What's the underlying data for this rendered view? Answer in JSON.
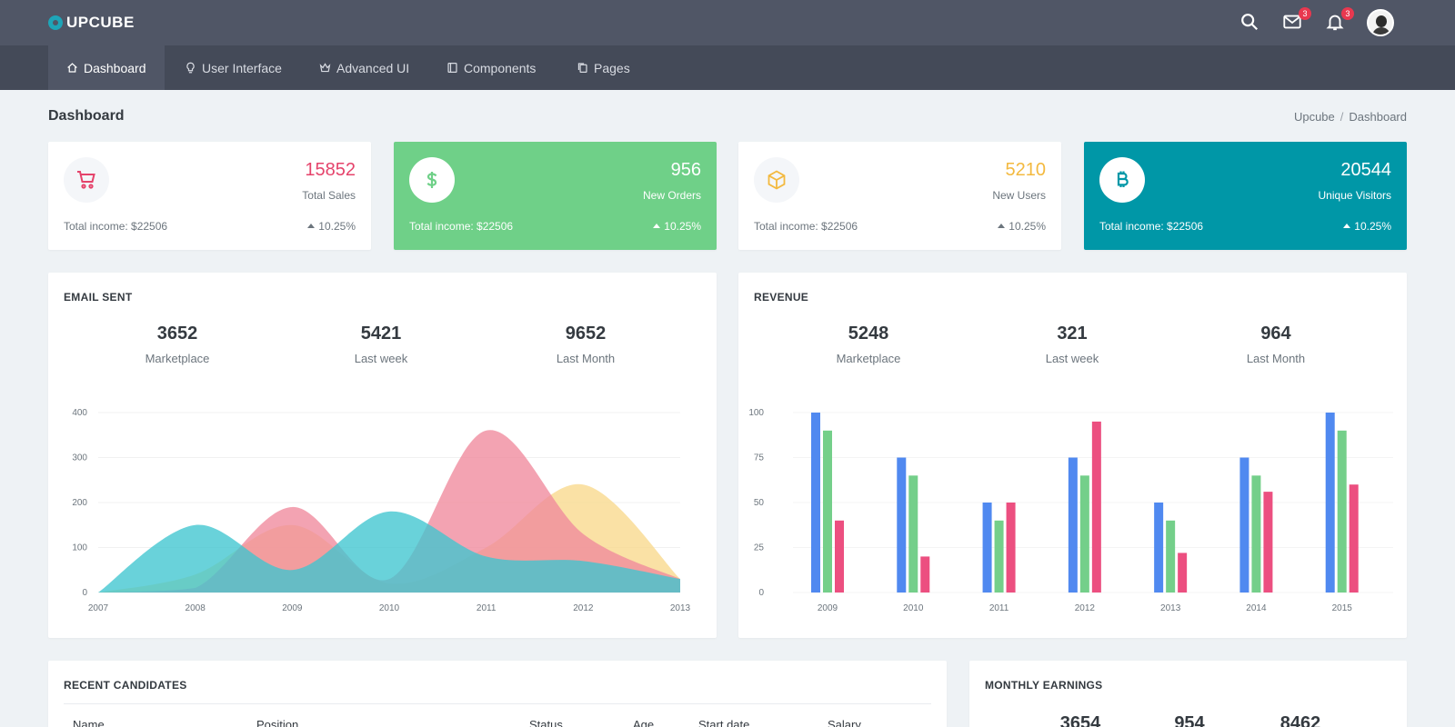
{
  "app": {
    "name": "UPCUBE"
  },
  "header": {
    "mail_badge": "3",
    "notif_badge": "3"
  },
  "nav": [
    {
      "label": "Dashboard",
      "icon": "home-icon",
      "active": true
    },
    {
      "label": "User Interface",
      "icon": "lightbulb-icon"
    },
    {
      "label": "Advanced UI",
      "icon": "crown-icon"
    },
    {
      "label": "Components",
      "icon": "book-icon"
    },
    {
      "label": "Pages",
      "icon": "copy-icon"
    }
  ],
  "page": {
    "title": "Dashboard",
    "breadcrumb": [
      "Upcube",
      "Dashboard"
    ]
  },
  "stats": [
    {
      "value": "15852",
      "label": "Total Sales",
      "income": "Total income: $22506",
      "change": "10.25%",
      "icon": "cart-icon",
      "value_color": "#e5436b",
      "icon_color": "#e5436b"
    },
    {
      "value": "956",
      "label": "New Orders",
      "income": "Total income: $22506",
      "change": "10.25%",
      "icon": "dollar-icon",
      "icon_color": "#6fd088"
    },
    {
      "value": "5210",
      "label": "New Users",
      "income": "Total income: $22506",
      "change": "10.25%",
      "icon": "cube-icon",
      "value_color": "#f3b93f",
      "icon_color": "#f3b93f"
    },
    {
      "value": "20544",
      "label": "Unique Visitors",
      "income": "Total income: $22506",
      "change": "10.25%",
      "icon": "bitcoin-icon",
      "icon_color": "#0097a7"
    }
  ],
  "email_card": {
    "title": "EMAIL SENT",
    "kpis": [
      {
        "value": "3652",
        "label": "Marketplace"
      },
      {
        "value": "5421",
        "label": "Last week"
      },
      {
        "value": "9652",
        "label": "Last Month"
      }
    ]
  },
  "revenue_card": {
    "title": "REVENUE",
    "kpis": [
      {
        "value": "5248",
        "label": "Marketplace"
      },
      {
        "value": "321",
        "label": "Last week"
      },
      {
        "value": "964",
        "label": "Last Month"
      }
    ]
  },
  "candidates": {
    "title": "RECENT CANDIDATES",
    "columns": [
      "Name",
      "Position",
      "Status",
      "Age",
      "Start date",
      "Salary"
    ]
  },
  "earnings": {
    "title": "MONTHLY EARNINGS",
    "values": [
      "3654",
      "954",
      "8462"
    ]
  },
  "chart_data": [
    {
      "type": "area",
      "x": [
        "2007",
        "2008",
        "2009",
        "2010",
        "2011",
        "2012",
        "2013"
      ],
      "ylim": [
        0,
        400
      ],
      "yticks": [
        0,
        100,
        200,
        300,
        400
      ],
      "series": [
        {
          "color": "#f9d98c",
          "values": [
            0,
            40,
            150,
            20,
            100,
            240,
            30
          ]
        },
        {
          "color": "#f0899c",
          "values": [
            0,
            10,
            190,
            30,
            360,
            130,
            30
          ]
        },
        {
          "color": "#3fc5d0",
          "values": [
            0,
            150,
            50,
            180,
            80,
            70,
            30
          ]
        }
      ]
    },
    {
      "type": "bar",
      "categories": [
        "2009",
        "2010",
        "2011",
        "2012",
        "2013",
        "2014",
        "2015"
      ],
      "ylim": [
        0,
        100
      ],
      "yticks": [
        0,
        25,
        50,
        75,
        100
      ],
      "series": [
        {
          "color": "#5089f0",
          "values": [
            100,
            75,
            50,
            75,
            50,
            75,
            100
          ]
        },
        {
          "color": "#74cf8a",
          "values": [
            90,
            65,
            40,
            65,
            40,
            65,
            90
          ]
        },
        {
          "color": "#ec4f80",
          "values": [
            40,
            20,
            50,
            95,
            22,
            56,
            60
          ]
        }
      ]
    }
  ]
}
